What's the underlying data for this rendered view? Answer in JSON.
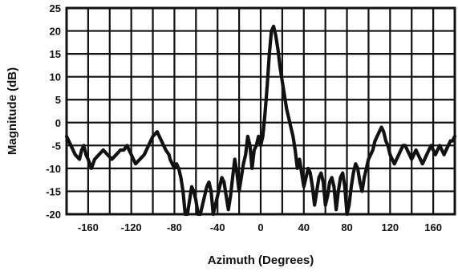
{
  "chart_data": {
    "type": "line",
    "title": "",
    "xlabel": "Azimuth (Degrees)",
    "ylabel": "Magnitude (dB)",
    "xlim": [
      -180,
      180
    ],
    "ylim": [
      -20,
      25
    ],
    "grid": true,
    "x_ticks": [
      -180,
      -160,
      -140,
      -120,
      -100,
      -80,
      -60,
      -40,
      -20,
      0,
      20,
      40,
      60,
      80,
      100,
      120,
      140,
      160,
      180
    ],
    "x_tick_labels": [
      "-160",
      "-120",
      "-80",
      "-40",
      "0",
      "40",
      "80",
      "120",
      "160"
    ],
    "x_tick_label_values": [
      -160,
      -120,
      -80,
      -40,
      0,
      40,
      80,
      120,
      160
    ],
    "y_ticks": [
      -20,
      -15,
      -10,
      -5,
      0,
      5,
      10,
      15,
      20,
      25
    ],
    "y_tick_labels": [
      "25",
      "20",
      "15",
      "10",
      "5",
      "0",
      "-5",
      "-10",
      "-15",
      "-20"
    ],
    "y_tick_label_values": [
      25,
      20,
      15,
      10,
      5,
      0,
      -5,
      -10,
      -15,
      -20
    ],
    "series": [
      {
        "color": "#111111",
        "x": [
          -180,
          -176,
          -172,
          -168,
          -166,
          -164,
          -162,
          -160,
          -157,
          -154,
          -150,
          -146,
          -142,
          -138,
          -134,
          -130,
          -127,
          -124,
          -120,
          -116,
          -112,
          -108,
          -104,
          -100,
          -96,
          -92,
          -88,
          -85,
          -84,
          -82,
          -80,
          -78,
          -76,
          -74,
          -72,
          -70,
          -68,
          -66,
          -64,
          -62,
          -60,
          -58,
          -56,
          -54,
          -52,
          -50,
          -48,
          -46,
          -44,
          -42,
          -40,
          -38,
          -36,
          -34,
          -32,
          -30,
          -28,
          -26,
          -24,
          -22,
          -20,
          -18,
          -16,
          -14,
          -12,
          -10,
          -8,
          -6,
          -4,
          -2,
          0,
          2,
          4,
          6,
          8,
          10,
          12,
          14,
          16,
          18,
          20,
          22,
          24,
          26,
          28,
          30,
          32,
          34,
          36,
          38,
          40,
          42,
          44,
          46,
          48,
          50,
          52,
          54,
          56,
          58,
          60,
          62,
          64,
          66,
          68,
          70,
          72,
          74,
          76,
          78,
          80,
          82,
          84,
          86,
          88,
          90,
          92,
          94,
          96,
          98,
          100,
          102,
          104,
          106,
          108,
          110,
          112,
          114,
          116,
          118,
          120,
          122,
          124,
          126,
          128,
          130,
          132,
          134,
          136,
          138,
          140,
          142,
          144,
          146,
          148,
          150,
          152,
          154,
          156,
          158,
          160,
          162,
          164,
          166,
          168,
          170,
          172,
          174,
          176,
          178,
          180
        ],
        "values": [
          -3,
          -5,
          -7,
          -8,
          -6,
          -5,
          -7,
          -8,
          -10,
          -8,
          -7,
          -6,
          -7,
          -8,
          -7,
          -6,
          -6,
          -5,
          -7,
          -9,
          -8,
          -7,
          -5,
          -3,
          -2,
          -4,
          -6,
          -7,
          -8,
          -9,
          -10,
          -9,
          -10,
          -12,
          -15,
          -20,
          -20,
          -17,
          -14,
          -15,
          -17,
          -20,
          -20,
          -18,
          -16,
          -14,
          -13,
          -15,
          -20,
          -18,
          -16,
          -14,
          -12,
          -13,
          -16,
          -19,
          -16,
          -12,
          -8,
          -11,
          -15,
          -12,
          -9,
          -7,
          -3,
          -5,
          -10,
          -6,
          -5,
          -3,
          -5,
          -3,
          2,
          8,
          15,
          20,
          21,
          19,
          16,
          12,
          9,
          6,
          3,
          1,
          -1,
          -3,
          -6,
          -10,
          -8,
          -11,
          -14,
          -12,
          -10,
          -11,
          -14,
          -18,
          -15,
          -12,
          -11,
          -13,
          -18,
          -16,
          -13,
          -12,
          -14,
          -19,
          -15,
          -12,
          -11,
          -14,
          -20,
          -18,
          -14,
          -11,
          -9,
          -10,
          -13,
          -15,
          -12,
          -10,
          -8,
          -7,
          -6,
          -4,
          -3,
          -2,
          -1,
          -2,
          -4,
          -5,
          -7,
          -8,
          -9,
          -8,
          -7,
          -6,
          -5,
          -5,
          -6,
          -7,
          -8,
          -7,
          -6,
          -7,
          -8,
          -9,
          -8,
          -7,
          -6,
          -5,
          -6,
          -7,
          -6,
          -5,
          -6,
          -7,
          -6,
          -5,
          -4,
          -4,
          -3
        ]
      }
    ]
  }
}
